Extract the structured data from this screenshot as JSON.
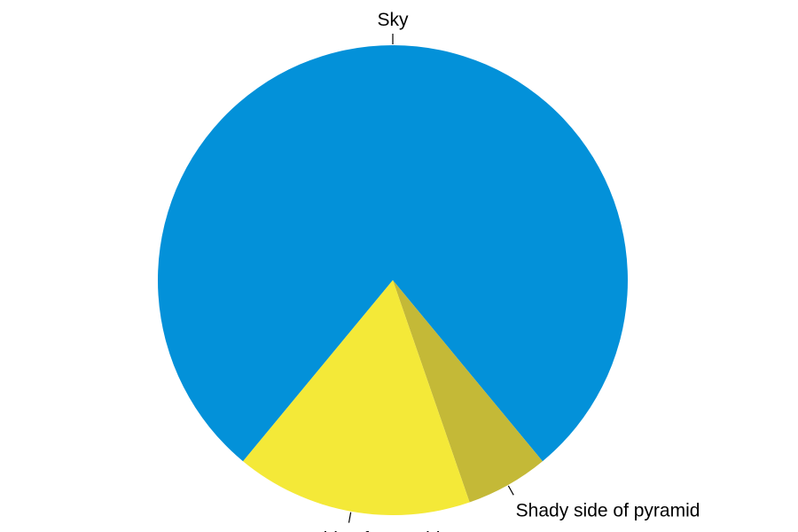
{
  "chart_data": {
    "type": "pie",
    "title": "",
    "start": "top",
    "direction": "clockwise",
    "slices": [
      {
        "label": "Sky",
        "value": 0.78,
        "color": "#0391d9"
      },
      {
        "label": "Shady side of pyramid",
        "value": 0.057,
        "color": "#c4b937"
      },
      {
        "label": "Sunny side of pyramid",
        "value": 0.163,
        "color": "#f4e938"
      }
    ]
  }
}
